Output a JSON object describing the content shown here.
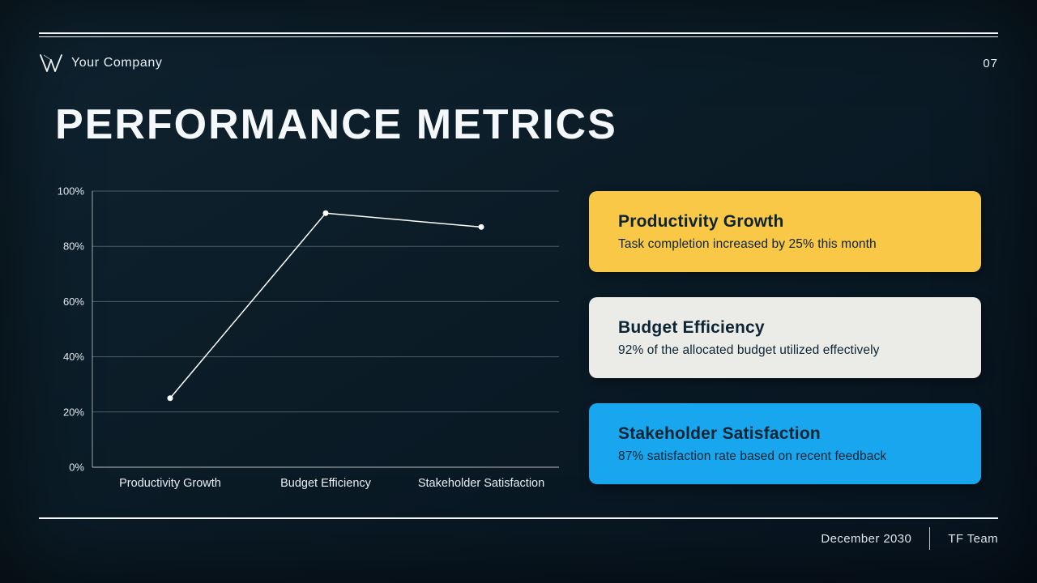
{
  "header": {
    "company_name": "Your Company",
    "page_number": "07"
  },
  "title": "PERFORMANCE METRICS",
  "chart_data": {
    "type": "line",
    "categories": [
      "Productivity Growth",
      "Budget Efficiency",
      "Stakeholder Satisfaction"
    ],
    "values": [
      25,
      92,
      87
    ],
    "title": "",
    "xlabel": "",
    "ylabel": "",
    "ylim": [
      0,
      100
    ],
    "yticks": [
      "0%",
      "20%",
      "40%",
      "60%",
      "80%",
      "100%"
    ],
    "grid": true,
    "legend": "none",
    "line_color": "#ffffff"
  },
  "cards": [
    {
      "title": "Productivity Growth",
      "description": "Task completion increased by 25% this month",
      "bg": "#f9c846",
      "text_color": "#0d2433"
    },
    {
      "title": "Budget Efficiency",
      "description": "92% of the allocated budget utilized effectively",
      "bg": "#ebebe8",
      "text_color": "#0d2433"
    },
    {
      "title": "Stakeholder Satisfaction",
      "description": "87% satisfaction rate based on recent feedback",
      "bg": "#18a7ee",
      "text_color": "#0d2433"
    }
  ],
  "footer": {
    "date": "December 2030",
    "team": "TF Team"
  }
}
